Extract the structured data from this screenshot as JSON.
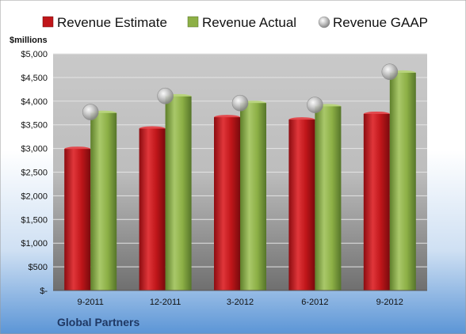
{
  "chart_data": {
    "type": "bar",
    "categories": [
      "9-2011",
      "12-2011",
      "3-2012",
      "6-2012",
      "9-2012"
    ],
    "series": [
      {
        "name": "Revenue Estimate",
        "kind": "bar",
        "color": "#c0161a",
        "values": [
          2990,
          3420,
          3660,
          3610,
          3730
        ]
      },
      {
        "name": "Revenue Actual",
        "kind": "bar",
        "color": "#8db046",
        "values": [
          3750,
          4100,
          3960,
          3890,
          4600
        ]
      },
      {
        "name": "Revenue GAAP",
        "kind": "marker",
        "color": "#bdbdbd",
        "values": [
          3770,
          4110,
          3960,
          3920,
          4620
        ]
      }
    ],
    "ylabel": "$millions",
    "ylim": [
      0,
      5000
    ],
    "yticks": [
      0,
      500,
      1000,
      1500,
      2000,
      2500,
      3000,
      3500,
      4000,
      4500,
      5000
    ],
    "ytick_labels": [
      "$-",
      "$500",
      "$1,000",
      "$1,500",
      "$2,000",
      "$2,500",
      "$3,000",
      "$3,500",
      "$4,000",
      "$4,500",
      "$5,000"
    ],
    "grid": true,
    "legend_position": "top"
  },
  "footer": {
    "company": "Global Partners"
  }
}
